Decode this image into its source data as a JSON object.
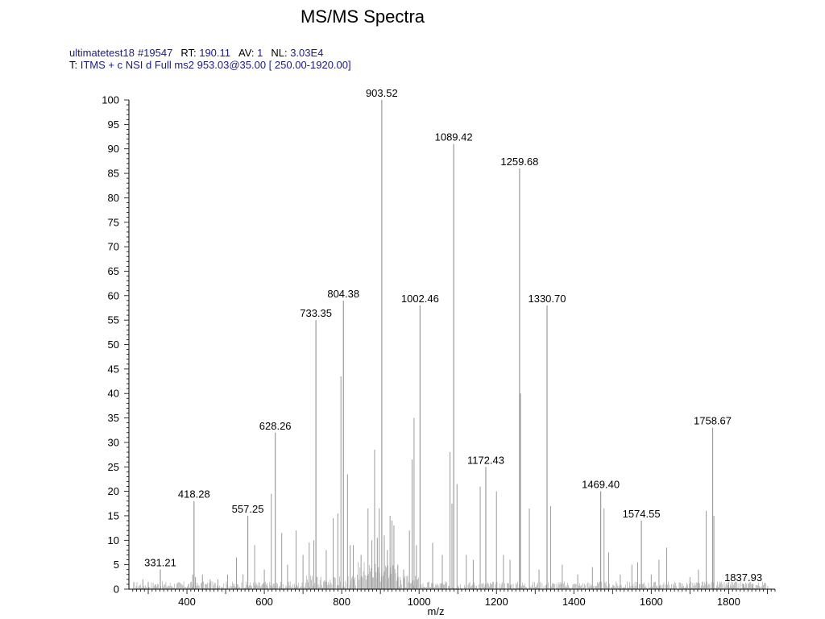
{
  "title": "MS/MS Spectra",
  "header": {
    "line1": [
      {
        "k": "",
        "v": "ultimatetest18"
      },
      {
        "k": "",
        "v": "#19547"
      },
      {
        "k": "RT:",
        "v": "190.11"
      },
      {
        "k": "AV:",
        "v": "1"
      },
      {
        "k": "NL:",
        "v": "3.03E4"
      }
    ],
    "line2_key": "T:",
    "line2_value": "ITMS + c NSI d Full ms2 953.03@35.00 [ 250.00-1920.00]"
  },
  "colors": {
    "header_value": "#1a1a8c",
    "peaks": "#9a9a9a",
    "axis": "#000000"
  },
  "chart_data": {
    "type": "bar",
    "title": "MS/MS Spectra",
    "xlabel": "m/z",
    "ylabel": "",
    "xlim": [
      250,
      1920
    ],
    "ylim": [
      0,
      100
    ],
    "xticks": [
      400,
      600,
      800,
      1000,
      1200,
      1400,
      1600,
      1800
    ],
    "yticks": [
      0,
      5,
      10,
      15,
      20,
      25,
      30,
      35,
      40,
      45,
      50,
      55,
      60,
      65,
      70,
      75,
      80,
      85,
      90,
      95,
      100
    ],
    "labeled_peaks": [
      {
        "mz": 331.21,
        "intensity": 4,
        "label": "331.21"
      },
      {
        "mz": 418.28,
        "intensity": 18,
        "label": "418.28"
      },
      {
        "mz": 557.25,
        "intensity": 15,
        "label": "557.25"
      },
      {
        "mz": 628.26,
        "intensity": 32,
        "label": "628.26"
      },
      {
        "mz": 733.35,
        "intensity": 55,
        "label": "733.35"
      },
      {
        "mz": 804.38,
        "intensity": 59,
        "label": "804.38"
      },
      {
        "mz": 903.52,
        "intensity": 100,
        "label": "903.52"
      },
      {
        "mz": 1002.46,
        "intensity": 58,
        "label": "1002.46"
      },
      {
        "mz": 1089.42,
        "intensity": 91,
        "label": "1089.42"
      },
      {
        "mz": 1172.43,
        "intensity": 25,
        "label": "1172.43"
      },
      {
        "mz": 1259.68,
        "intensity": 86,
        "label": "1259.68"
      },
      {
        "mz": 1330.7,
        "intensity": 58,
        "label": "1330.70"
      },
      {
        "mz": 1469.4,
        "intensity": 20,
        "label": "1469.40"
      },
      {
        "mz": 1574.55,
        "intensity": 14,
        "label": "1574.55"
      },
      {
        "mz": 1758.67,
        "intensity": 33,
        "label": "1758.67"
      },
      {
        "mz": 1837.93,
        "intensity": 1,
        "label": "1837.93"
      }
    ],
    "peaks": [
      {
        "mz": 286,
        "intensity": 2
      },
      {
        "mz": 300,
        "intensity": 1.5
      },
      {
        "mz": 318,
        "intensity": 1
      },
      {
        "mz": 415,
        "intensity": 3
      },
      {
        "mz": 422,
        "intensity": 2.5
      },
      {
        "mz": 440,
        "intensity": 3
      },
      {
        "mz": 460,
        "intensity": 2
      },
      {
        "mz": 480,
        "intensity": 2
      },
      {
        "mz": 505,
        "intensity": 3
      },
      {
        "mz": 528,
        "intensity": 6.5
      },
      {
        "mz": 545,
        "intensity": 3
      },
      {
        "mz": 575,
        "intensity": 9
      },
      {
        "mz": 600,
        "intensity": 4
      },
      {
        "mz": 618,
        "intensity": 19.5
      },
      {
        "mz": 645,
        "intensity": 11.5
      },
      {
        "mz": 660,
        "intensity": 5
      },
      {
        "mz": 682,
        "intensity": 12
      },
      {
        "mz": 700,
        "intensity": 7
      },
      {
        "mz": 716,
        "intensity": 9.5
      },
      {
        "mz": 728,
        "intensity": 10
      },
      {
        "mz": 760,
        "intensity": 8
      },
      {
        "mz": 778,
        "intensity": 14.5
      },
      {
        "mz": 790,
        "intensity": 15.5
      },
      {
        "mz": 798,
        "intensity": 43.5
      },
      {
        "mz": 815,
        "intensity": 23.5
      },
      {
        "mz": 822,
        "intensity": 9
      },
      {
        "mz": 830,
        "intensity": 9
      },
      {
        "mz": 850,
        "intensity": 7
      },
      {
        "mz": 868,
        "intensity": 16.5
      },
      {
        "mz": 878,
        "intensity": 10
      },
      {
        "mz": 885,
        "intensity": 28.5
      },
      {
        "mz": 892,
        "intensity": 10.5
      },
      {
        "mz": 897,
        "intensity": 16.5
      },
      {
        "mz": 910,
        "intensity": 11
      },
      {
        "mz": 918,
        "intensity": 8
      },
      {
        "mz": 925,
        "intensity": 15
      },
      {
        "mz": 930,
        "intensity": 14
      },
      {
        "mz": 935,
        "intensity": 13
      },
      {
        "mz": 945,
        "intensity": 5
      },
      {
        "mz": 960,
        "intensity": 4
      },
      {
        "mz": 975,
        "intensity": 12
      },
      {
        "mz": 982,
        "intensity": 26.5
      },
      {
        "mz": 987,
        "intensity": 35
      },
      {
        "mz": 993,
        "intensity": 9
      },
      {
        "mz": 1035,
        "intensity": 9.5
      },
      {
        "mz": 1060,
        "intensity": 7
      },
      {
        "mz": 1080,
        "intensity": 28
      },
      {
        "mz": 1085,
        "intensity": 17.5
      },
      {
        "mz": 1098,
        "intensity": 21.5
      },
      {
        "mz": 1122,
        "intensity": 7
      },
      {
        "mz": 1140,
        "intensity": 6
      },
      {
        "mz": 1158,
        "intensity": 21
      },
      {
        "mz": 1200,
        "intensity": 20
      },
      {
        "mz": 1218,
        "intensity": 7
      },
      {
        "mz": 1235,
        "intensity": 6
      },
      {
        "mz": 1262,
        "intensity": 40
      },
      {
        "mz": 1285,
        "intensity": 16.5
      },
      {
        "mz": 1310,
        "intensity": 4
      },
      {
        "mz": 1340,
        "intensity": 17
      },
      {
        "mz": 1370,
        "intensity": 5
      },
      {
        "mz": 1410,
        "intensity": 3
      },
      {
        "mz": 1448,
        "intensity": 4.5
      },
      {
        "mz": 1478,
        "intensity": 16.5
      },
      {
        "mz": 1490,
        "intensity": 7.5
      },
      {
        "mz": 1520,
        "intensity": 3
      },
      {
        "mz": 1550,
        "intensity": 5
      },
      {
        "mz": 1565,
        "intensity": 5.5
      },
      {
        "mz": 1600,
        "intensity": 3
      },
      {
        "mz": 1620,
        "intensity": 6
      },
      {
        "mz": 1640,
        "intensity": 8.5
      },
      {
        "mz": 1700,
        "intensity": 2.5
      },
      {
        "mz": 1722,
        "intensity": 4
      },
      {
        "mz": 1742,
        "intensity": 16
      },
      {
        "mz": 1762,
        "intensity": 15
      },
      {
        "mz": 1800,
        "intensity": 1.5
      },
      {
        "mz": 1860,
        "intensity": 1
      }
    ]
  }
}
